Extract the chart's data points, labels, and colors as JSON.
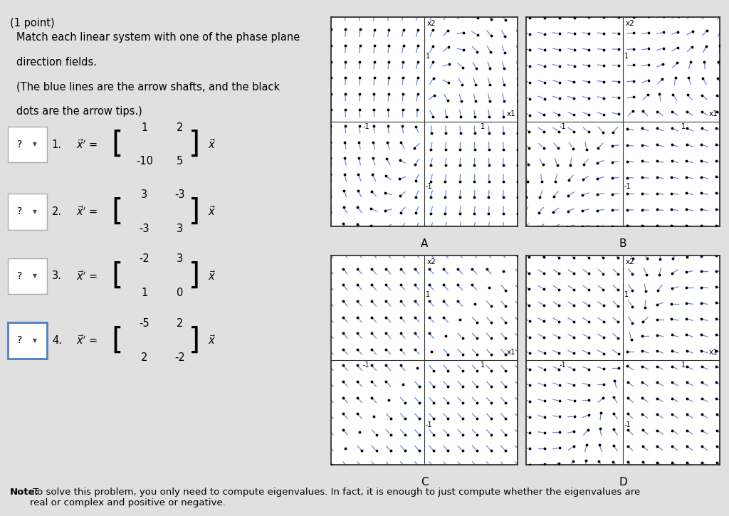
{
  "bg_color": "#e0e0e0",
  "title_text": "(1 point)",
  "description_lines": [
    "Match each linear system with one of the phase plane",
    "direction fields.",
    "(The blue lines are the arrow shafts, and the black",
    "dots are the arrow tips.)"
  ],
  "systems": [
    {
      "num": "1.",
      "rows": [
        [
          "1",
          "2"
        ],
        [
          "-10",
          "5"
        ]
      ]
    },
    {
      "num": "2.",
      "rows": [
        [
          "3",
          "-3"
        ],
        [
          "-3",
          "3"
        ]
      ]
    },
    {
      "num": "3.",
      "rows": [
        [
          "-2",
          "3"
        ],
        [
          "1",
          "0"
        ]
      ]
    },
    {
      "num": "4.",
      "rows": [
        [
          "-5",
          "2"
        ],
        [
          "2",
          "-2"
        ]
      ]
    }
  ],
  "phase_labels": [
    "A",
    "B",
    "C",
    "D"
  ],
  "plot_matrices": [
    [
      [
        1,
        2
      ],
      [
        -10,
        5
      ]
    ],
    [
      [
        -2,
        3
      ],
      [
        1,
        0
      ]
    ],
    [
      [
        3,
        -3
      ],
      [
        -3,
        3
      ]
    ],
    [
      [
        -5,
        2
      ],
      [
        2,
        -2
      ]
    ]
  ],
  "note_bold": "Note:",
  "note_rest": " To solve this problem, you only need to compute eigenvalues. In fact, it is enough to just compute whether the eigenvalues are\nreal or complex and positive or negative.",
  "arrow_color": "#5b8dd9",
  "dot_color": "#000000",
  "axis_color": "#333333",
  "plot_bg": "#ffffff",
  "xlim": [
    -1.6,
    1.6
  ],
  "ylim": [
    -1.6,
    1.6
  ],
  "grid_points": 14,
  "arrow_scale": 0.1
}
